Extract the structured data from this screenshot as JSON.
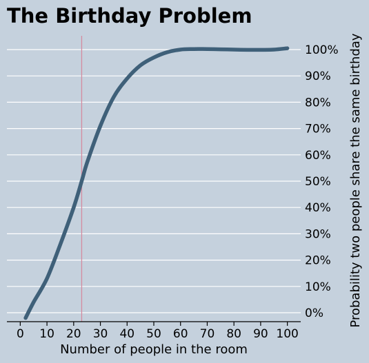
{
  "chart_data": {
    "type": "line",
    "title": "The Birthday Problem",
    "xlabel": "Number of people in the room",
    "ylabel": "Probability two people share the same birthday",
    "xlim": [
      -5,
      105
    ],
    "ylim": [
      0,
      100
    ],
    "xticks": [
      0,
      10,
      20,
      30,
      40,
      50,
      60,
      70,
      80,
      90,
      100
    ],
    "yticks": [
      0,
      10,
      20,
      30,
      40,
      50,
      60,
      70,
      80,
      90,
      100
    ],
    "xtick_labels": [
      "0",
      "10",
      "20",
      "30",
      "40",
      "50",
      "60",
      "70",
      "80",
      "90",
      "100"
    ],
    "ytick_labels": [
      "0%",
      "10%",
      "20%",
      "30%",
      "40%",
      "50%",
      "60%",
      "70%",
      "80%",
      "90%",
      "100%"
    ],
    "grid": "horizontal",
    "y_axis_side": "right",
    "vline_x": 23,
    "series": [
      {
        "x": [
          2,
          5,
          10,
          15,
          20,
          23,
          25,
          30,
          35,
          40,
          45,
          50,
          55,
          60,
          65,
          70,
          75,
          80,
          85,
          90,
          95,
          100
        ],
        "values": [
          -2,
          4,
          13,
          26,
          40,
          50,
          57,
          71,
          82,
          89,
          94,
          97,
          99,
          100,
          100.2,
          100.2,
          100.1,
          100,
          99.9,
          99.9,
          100,
          100.5
        ]
      }
    ],
    "colors": {
      "line": "#3f6079",
      "vline": "#d48a9e",
      "grid": "#ffffff",
      "background": "#c5d1dd"
    }
  }
}
